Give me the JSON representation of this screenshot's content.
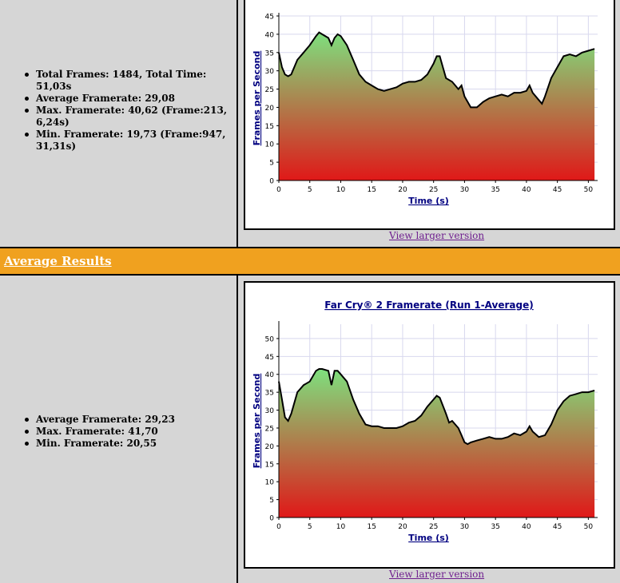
{
  "run1": {
    "stats": [
      "Total Frames: 1484, Total Time: 51,03s",
      "Average Framerate: 29,08",
      "Max. Framerate: 40,62 (Frame:213, 6,24s)",
      "Min. Framerate: 19,73 (Frame:947, 31,31s)"
    ],
    "link": "View larger version"
  },
  "average_section": {
    "title": "Average Results",
    "stats": [
      "Average Framerate: 29,23",
      "Max. Framerate: 41,70",
      "Min. Framerate: 20,55"
    ],
    "link": "View larger version"
  },
  "colors": {
    "band": "#f0a11f",
    "panel": "#d6d6d6",
    "title": "#000080",
    "fill_top": "#7ee07e",
    "fill_bottom": "#e01818",
    "link": "#6f1f8f"
  },
  "chart_data": [
    {
      "type": "area",
      "title": "",
      "xlabel": "Time (s)",
      "ylabel": "Frames per Second",
      "xlim": [
        0,
        51.5
      ],
      "ylim": [
        0,
        45
      ],
      "x_ticks": [
        0,
        5,
        10,
        15,
        20,
        25,
        30,
        35,
        40,
        45,
        50
      ],
      "y_ticks": [
        0,
        5,
        10,
        15,
        20,
        25,
        30,
        35,
        40,
        45
      ],
      "grid": true,
      "series": [
        {
          "x": [
            0,
            0.5,
            1,
            1.5,
            2,
            3,
            4,
            5,
            6,
            6.5,
            7,
            8,
            8.5,
            9,
            9.5,
            10,
            11,
            12,
            13,
            14,
            15,
            16,
            17,
            18,
            19,
            20,
            21,
            22,
            23,
            24,
            25,
            25.5,
            26,
            26.5,
            27,
            28,
            29,
            29.5,
            30,
            31,
            32,
            33,
            34,
            35,
            36,
            37,
            38,
            39,
            40,
            40.5,
            41,
            42,
            42.5,
            43,
            44,
            45,
            46,
            47,
            48,
            49,
            50,
            51
          ],
          "y": [
            35,
            31,
            29,
            28.5,
            29,
            33,
            35,
            37,
            39.5,
            40.5,
            40,
            39,
            37,
            39,
            40,
            39.5,
            37,
            33,
            29,
            27,
            26,
            25,
            24.5,
            25,
            25.5,
            26.5,
            27,
            27,
            27.5,
            29,
            32,
            34,
            34,
            31,
            28,
            27,
            25,
            26,
            23,
            20,
            20,
            21.5,
            22.5,
            23,
            23.5,
            23,
            24,
            24,
            24.5,
            26,
            24,
            22,
            21,
            23,
            28,
            31,
            34,
            34.5,
            34,
            35,
            35.5,
            36
          ]
        }
      ]
    },
    {
      "type": "area",
      "title": "Far Cry® 2 Framerate (Run 1-Average)",
      "xlabel": "Time (s)",
      "ylabel": "Frames per Second",
      "xlim": [
        0,
        51.5
      ],
      "ylim": [
        0,
        54
      ],
      "x_ticks": [
        0,
        5,
        10,
        15,
        20,
        25,
        30,
        35,
        40,
        45,
        50
      ],
      "y_ticks": [
        0,
        5,
        10,
        15,
        20,
        25,
        30,
        35,
        40,
        45,
        50
      ],
      "grid": true,
      "series": [
        {
          "x": [
            0,
            0.5,
            1,
            1.5,
            2,
            3,
            4,
            5,
            6,
            6.5,
            7,
            8,
            8.5,
            9,
            9.5,
            10,
            11,
            12,
            13,
            14,
            15,
            16,
            17,
            18,
            19,
            20,
            21,
            22,
            23,
            24,
            25,
            25.5,
            26,
            27,
            27.5,
            28,
            29,
            29.5,
            30,
            30.5,
            31,
            32,
            33,
            34,
            35,
            36,
            37,
            38,
            39,
            40,
            40.5,
            41,
            42,
            43,
            44,
            45,
            46,
            47,
            48,
            49,
            50,
            51
          ],
          "y": [
            38,
            33,
            28,
            27,
            29,
            35,
            37,
            38,
            41,
            41.5,
            41.5,
            41,
            37,
            41,
            41,
            40,
            38,
            33,
            29,
            26,
            25.5,
            25.5,
            25,
            25,
            25,
            25.5,
            26.5,
            27,
            28.5,
            31,
            33,
            34,
            33.5,
            29,
            26.5,
            27,
            25,
            23,
            21,
            20.5,
            21,
            21.5,
            22,
            22.5,
            22,
            22,
            22.5,
            23.5,
            23,
            24,
            25.5,
            24,
            22.5,
            23,
            26,
            30,
            32.5,
            34,
            34.5,
            35,
            35,
            35.5
          ]
        }
      ]
    }
  ]
}
